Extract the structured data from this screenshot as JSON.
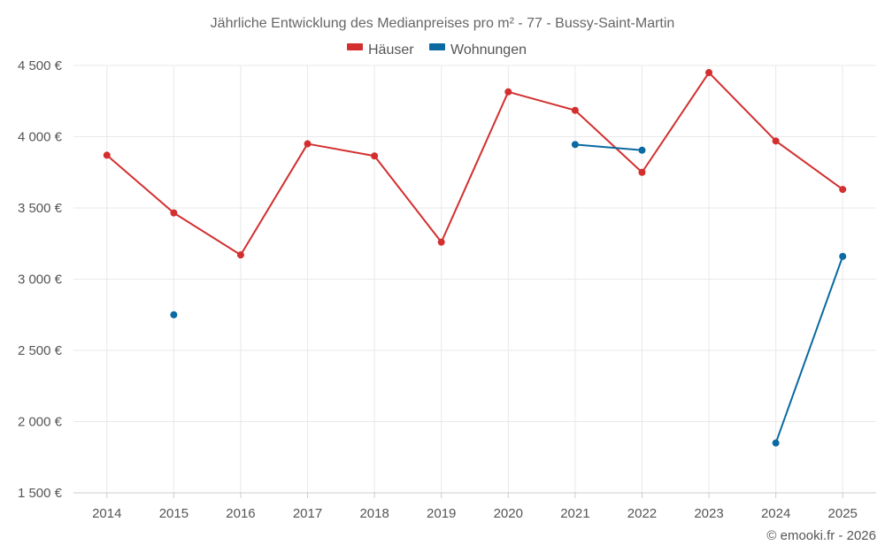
{
  "chart_data": {
    "type": "line",
    "title": "Jährliche Entwicklung des Medianpreises pro m² - 77 - Bussy-Saint-Martin",
    "xlabel": "",
    "ylabel": "",
    "categories": [
      "2014",
      "2015",
      "2016",
      "2017",
      "2018",
      "2019",
      "2020",
      "2021",
      "2022",
      "2023",
      "2024",
      "2025"
    ],
    "ylim": [
      1500,
      4500
    ],
    "yticks": [
      1500,
      2000,
      2500,
      3000,
      3500,
      4000,
      4500
    ],
    "ytick_labels": [
      "1 500 €",
      "2 000 €",
      "2 500 €",
      "3 000 €",
      "3 500 €",
      "4 000 €",
      "4 500 €"
    ],
    "grid": true,
    "legend_position": "top-center",
    "series": [
      {
        "name": "Häuser",
        "color": "#d32f2f",
        "values": [
          3870,
          3465,
          3170,
          3950,
          3865,
          3260,
          4315,
          4185,
          3750,
          4450,
          3970,
          3630
        ]
      },
      {
        "name": "Wohnungen",
        "color": "#0a6aa1",
        "values": [
          null,
          2750,
          null,
          null,
          null,
          null,
          null,
          3945,
          3905,
          null,
          1850,
          3160
        ]
      }
    ]
  },
  "credit": "© emooki.fr - 2026"
}
